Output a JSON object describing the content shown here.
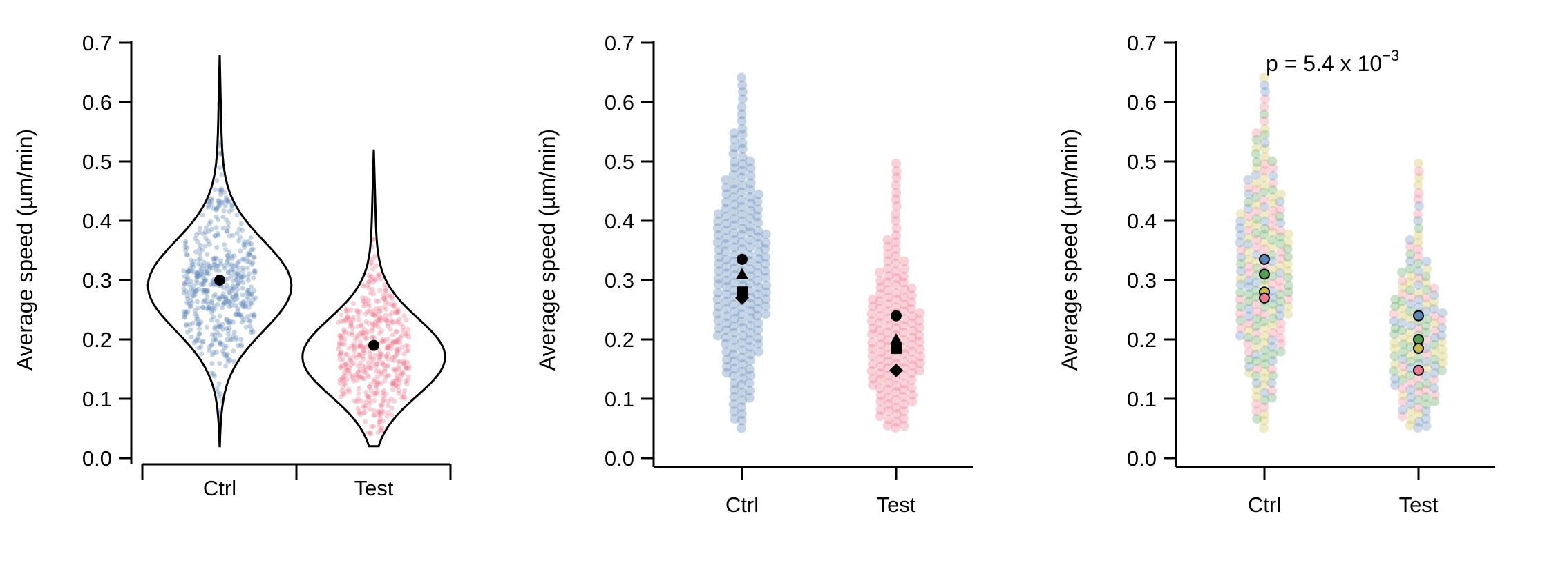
{
  "chart_data": [
    {
      "type": "violin",
      "panel": "left",
      "ylabel": "Average speed (µm/min)",
      "ylim": [
        0.0,
        0.7
      ],
      "yticks": [
        "0.0",
        "0.1",
        "0.2",
        "0.3",
        "0.4",
        "0.5",
        "0.6",
        "0.7"
      ],
      "categories": [
        "Ctrl",
        "Test"
      ],
      "series": [
        {
          "name": "Ctrl",
          "color": "#5b86b8",
          "mean": 0.3,
          "min": 0.02,
          "max": 0.68,
          "mode": 0.29
        },
        {
          "name": "Test",
          "color": "#ee7a90",
          "mean": 0.19,
          "min": 0.02,
          "max": 0.52,
          "mode": 0.17
        }
      ]
    },
    {
      "type": "swarm",
      "panel": "middle",
      "ylabel": "Average speed (µm/min)",
      "ylim": [
        0.0,
        0.7
      ],
      "yticks": [
        "0.0",
        "0.1",
        "0.2",
        "0.3",
        "0.4",
        "0.5",
        "0.6",
        "0.7"
      ],
      "categories": [
        "Ctrl",
        "Test"
      ],
      "series": [
        {
          "name": "Ctrl",
          "color": "#5b86b8",
          "min": 0.05,
          "max": 0.65,
          "center": 0.3,
          "replicate_means": {
            "circle": 0.335,
            "triangle": 0.31,
            "square": 0.28,
            "diamond": 0.27
          }
        },
        {
          "name": "Test",
          "color": "#ee7a90",
          "min": 0.05,
          "max": 0.5,
          "center": 0.18,
          "replicate_means": {
            "circle": 0.24,
            "triangle": 0.2,
            "square": 0.185,
            "diamond": 0.148
          }
        }
      ]
    },
    {
      "type": "swarm",
      "panel": "right",
      "ylabel": "Average speed (µm/min)",
      "ylim": [
        0.0,
        0.7
      ],
      "yticks": [
        "0.0",
        "0.1",
        "0.2",
        "0.3",
        "0.4",
        "0.5",
        "0.6",
        "0.7"
      ],
      "categories": [
        "Ctrl",
        "Test"
      ],
      "replicate_colors": [
        "#5b86b8",
        "#4ea050",
        "#c9bd45",
        "#ee7a90"
      ],
      "series": [
        {
          "name": "Ctrl",
          "min": 0.05,
          "max": 0.65,
          "center": 0.3,
          "replicate_means": [
            0.335,
            0.31,
            0.28,
            0.27
          ]
        },
        {
          "name": "Test",
          "min": 0.05,
          "max": 0.5,
          "center": 0.18,
          "replicate_means": [
            0.24,
            0.2,
            0.185,
            0.148
          ]
        }
      ],
      "annotation": {
        "text": "p = 5.4 x 10",
        "superscript": "−3"
      }
    }
  ]
}
